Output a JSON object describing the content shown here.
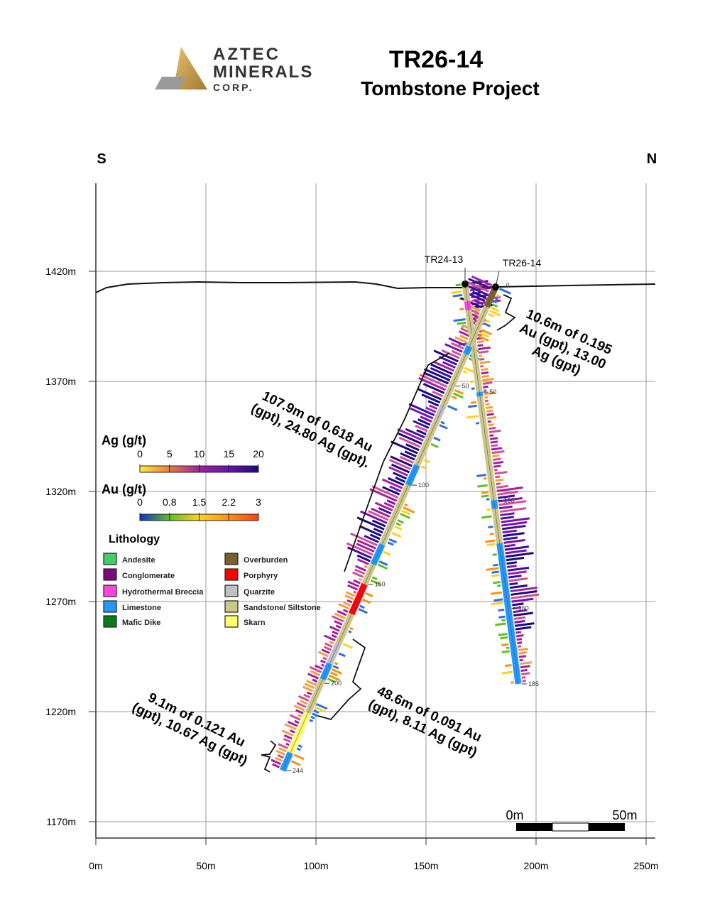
{
  "header": {
    "logo": {
      "line1": "AZTEC",
      "line2": "MINERALS",
      "line3": "CORP."
    },
    "title": "TR26-14",
    "subtitle": "Tombstone Project"
  },
  "compass": {
    "left": "S",
    "right": "N"
  },
  "axes": {
    "x_ticks": [
      "0m",
      "50m",
      "100m",
      "150m",
      "200m",
      "250m"
    ],
    "y_ticks": [
      "1420m",
      "1370m",
      "1320m",
      "1270m",
      "1220m",
      "1170m"
    ]
  },
  "holes": [
    {
      "name": "TR24-13",
      "collar_label": "0",
      "depth_labels": [
        "50",
        "100",
        "150",
        "185"
      ]
    },
    {
      "name": "TR26-14",
      "collar_label": "0",
      "depth_labels": [
        "50",
        "100",
        "150",
        "200",
        "244"
      ]
    }
  ],
  "intervals": [
    {
      "line1": "10.6m of 0.195",
      "line2": "Au (gpt), 13.00",
      "line3": "Ag (gpt)"
    },
    {
      "line1": "107.9m of 0.618 Au",
      "line2": "(gpt), 24.80 Ag (gpt).",
      "line3": ""
    },
    {
      "line1": "48.6m of 0.091 Au",
      "line2": "(gpt), 8.11 Ag (gpt)",
      "line3": ""
    },
    {
      "line1": "9.1m of 0.121 Au",
      "line2": "(gpt), 10.67 Ag (gpt)",
      "line3": ""
    }
  ],
  "legend": {
    "ag": {
      "title": "Ag (g/t)",
      "ticks": [
        "0",
        "5",
        "10",
        "15",
        "20"
      ],
      "colors": [
        "#ffee33",
        "#f07a3a",
        "#a020a0",
        "#6a10b0",
        "#1a0a80"
      ]
    },
    "au": {
      "title": "Au (g/t)",
      "ticks": [
        "0",
        "0.8",
        "1.5",
        "2.2",
        "3"
      ],
      "colors": [
        "#1030d0",
        "#60c020",
        "#ffd020",
        "#ff9010",
        "#ff4010"
      ]
    },
    "lithology_title": "Lithology",
    "lithology": [
      {
        "label": "Andesite",
        "color": "#44cc66"
      },
      {
        "label": "Conglomerate",
        "color": "#7a0a80"
      },
      {
        "label": "Hydrothermal Breccia",
        "color": "#ff44dd"
      },
      {
        "label": "Limestone",
        "color": "#2299ff"
      },
      {
        "label": "Mafic Dike",
        "color": "#0a7a1a"
      },
      {
        "label": "Overburden",
        "color": "#7a6030"
      },
      {
        "label": "Porphyry",
        "color": "#ff0000"
      },
      {
        "label": "Quarzite",
        "color": "#c0c0c0"
      },
      {
        "label": "Sandstone/ Siltstone",
        "color": "#cdc888"
      },
      {
        "label": "Skarn",
        "color": "#ffff66"
      }
    ]
  },
  "scale_bar": {
    "left": "0m",
    "right": "50m"
  }
}
